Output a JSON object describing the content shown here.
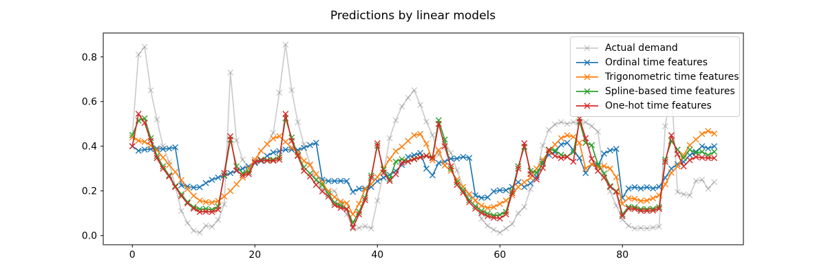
{
  "chart_data": {
    "type": "line",
    "title": "Predictions by linear models",
    "xlabel": "",
    "ylabel": "",
    "n_points": 96,
    "x_range": {
      "start": 0,
      "end": 95,
      "step": 1,
      "note": "x value = array index (last 96 hours)"
    },
    "xlim": [
      -4.75,
      99.75
    ],
    "ylim": [
      -0.041,
      0.907
    ],
    "grid": false,
    "marker": "x",
    "legend_position": "upper right",
    "axis_color": "#000000",
    "xticks": {
      "values": [
        0,
        20,
        40,
        60,
        80
      ],
      "labels": [
        "0",
        "20",
        "40",
        "60",
        "80"
      ]
    },
    "yticks": {
      "values": [
        0.0,
        0.2,
        0.4,
        0.6,
        0.8
      ],
      "labels": [
        "0.0",
        "0.2",
        "0.4",
        "0.6",
        "0.8"
      ]
    },
    "series": [
      {
        "name": "Actual demand",
        "color": "#000000",
        "alpha": 0.2,
        "values": [
          0.45,
          0.81,
          0.845,
          0.65,
          0.52,
          0.4,
          0.33,
          0.22,
          0.11,
          0.057,
          0.022,
          0.013,
          0.045,
          0.04,
          0.07,
          0.14,
          0.73,
          0.426,
          0.34,
          0.3,
          0.33,
          0.38,
          0.41,
          0.46,
          0.64,
          0.855,
          0.651,
          0.508,
          0.408,
          0.319,
          0.247,
          0.208,
          0.2,
          0.2,
          0.145,
          0.095,
          0.03,
          0.035,
          0.042,
          0.032,
          0.157,
          0.28,
          0.436,
          0.516,
          0.578,
          0.617,
          0.651,
          0.585,
          0.51,
          0.45,
          0.36,
          0.42,
          0.37,
          0.292,
          0.218,
          0.177,
          0.159,
          0.075,
          0.044,
          0.026,
          0.013,
          0.032,
          0.052,
          0.1,
          0.128,
          0.208,
          0.28,
          0.403,
          0.473,
          0.498,
          0.508,
          0.5,
          0.508,
          0.504,
          0.508,
          0.49,
          0.465,
          0.27,
          0.198,
          0.134,
          0.073,
          0.044,
          0.032,
          0.034,
          0.032,
          0.036,
          0.04,
          0.49,
          0.66,
          0.195,
          0.185,
          0.18,
          0.245,
          0.25,
          0.21,
          0.24
        ]
      },
      {
        "name": "Ordinal time features",
        "color": "#1f77b4",
        "alpha": 1,
        "values": [
          0.4,
          0.38,
          0.385,
          0.387,
          0.39,
          0.387,
          0.39,
          0.395,
          0.225,
          0.22,
          0.215,
          0.217,
          0.235,
          0.25,
          0.26,
          0.268,
          0.28,
          0.29,
          0.3,
          0.31,
          0.325,
          0.334,
          0.357,
          0.372,
          0.378,
          0.385,
          0.385,
          0.383,
          0.393,
          0.405,
          0.415,
          0.25,
          0.244,
          0.244,
          0.245,
          0.244,
          0.196,
          0.21,
          0.211,
          0.218,
          0.244,
          0.259,
          0.272,
          0.29,
          0.316,
          0.352,
          0.36,
          0.37,
          0.3,
          0.27,
          0.325,
          0.331,
          0.344,
          0.345,
          0.352,
          0.348,
          0.18,
          0.169,
          0.171,
          0.198,
          0.203,
          0.203,
          0.218,
          0.239,
          0.218,
          0.234,
          0.262,
          0.331,
          0.362,
          0.374,
          0.408,
          0.415,
          0.383,
          0.347,
          0.28,
          0.319,
          0.313,
          0.367,
          0.381,
          0.388,
          0.169,
          0.211,
          0.217,
          0.211,
          0.217,
          0.211,
          0.218,
          0.259,
          0.3,
          0.32,
          0.33,
          0.36,
          0.375,
          0.4,
          0.39,
          0.4
        ]
      },
      {
        "name": "Trigonometric time features",
        "color": "#ff7f0e",
        "alpha": 1,
        "values": [
          0.44,
          0.425,
          0.42,
          0.403,
          0.383,
          0.35,
          0.316,
          0.285,
          0.249,
          0.208,
          0.178,
          0.157,
          0.15,
          0.148,
          0.155,
          0.175,
          0.2,
          0.23,
          0.26,
          0.3,
          0.34,
          0.38,
          0.41,
          0.435,
          0.445,
          0.42,
          0.393,
          0.372,
          0.334,
          0.316,
          0.275,
          0.237,
          0.198,
          0.172,
          0.152,
          0.145,
          0.095,
          0.142,
          0.208,
          0.231,
          0.262,
          0.3,
          0.342,
          0.378,
          0.398,
          0.424,
          0.449,
          0.455,
          0.411,
          0.337,
          0.383,
          0.314,
          0.29,
          0.251,
          0.218,
          0.186,
          0.157,
          0.134,
          0.124,
          0.128,
          0.142,
          0.157,
          0.18,
          0.218,
          0.239,
          0.259,
          0.3,
          0.34,
          0.374,
          0.408,
          0.436,
          0.449,
          0.442,
          0.415,
          0.3,
          0.32,
          0.306,
          0.311,
          0.3,
          0.262,
          0.142,
          0.167,
          0.165,
          0.155,
          0.157,
          0.167,
          0.18,
          0.23,
          0.282,
          0.31,
          0.36,
          0.405,
          0.43,
          0.455,
          0.468,
          0.457
        ]
      },
      {
        "name": "Spline-based time features",
        "color": "#2ca02c",
        "alpha": 1,
        "values": [
          0.45,
          0.515,
          0.525,
          0.436,
          0.357,
          0.31,
          0.27,
          0.222,
          0.185,
          0.15,
          0.128,
          0.118,
          0.12,
          0.116,
          0.13,
          0.27,
          0.43,
          0.31,
          0.28,
          0.285,
          0.33,
          0.34,
          0.338,
          0.34,
          0.35,
          0.525,
          0.439,
          0.36,
          0.306,
          0.278,
          0.25,
          0.227,
          0.186,
          0.147,
          0.134,
          0.12,
          0.057,
          0.106,
          0.169,
          0.268,
          0.403,
          0.295,
          0.253,
          0.331,
          0.342,
          0.333,
          0.344,
          0.351,
          0.358,
          0.35,
          0.516,
          0.43,
          0.3,
          0.239,
          0.203,
          0.159,
          0.131,
          0.111,
          0.098,
          0.09,
          0.093,
          0.106,
          0.2,
          0.31,
          0.398,
          0.29,
          0.282,
          0.321,
          0.385,
          0.381,
          0.362,
          0.354,
          0.374,
          0.511,
          0.415,
          0.405,
          0.319,
          0.278,
          0.222,
          0.199,
          0.095,
          0.128,
          0.127,
          0.118,
          0.118,
          0.12,
          0.127,
          0.34,
          0.424,
          0.385,
          0.347,
          0.385,
          0.37,
          0.375,
          0.36,
          0.375
        ]
      },
      {
        "name": "One-hot time features",
        "color": "#d62728",
        "alpha": 1,
        "values": [
          0.4,
          0.545,
          0.505,
          0.424,
          0.347,
          0.3,
          0.265,
          0.218,
          0.177,
          0.145,
          0.121,
          0.106,
          0.107,
          0.106,
          0.116,
          0.28,
          0.444,
          0.292,
          0.27,
          0.275,
          0.33,
          0.337,
          0.335,
          0.335,
          0.34,
          0.545,
          0.424,
          0.357,
          0.29,
          0.265,
          0.227,
          0.198,
          0.175,
          0.137,
          0.124,
          0.118,
          0.036,
          0.095,
          0.159,
          0.259,
          0.413,
          0.282,
          0.245,
          0.275,
          0.326,
          0.331,
          0.342,
          0.35,
          0.357,
          0.347,
          0.5,
          0.4,
          0.31,
          0.227,
          0.193,
          0.149,
          0.121,
          0.101,
          0.087,
          0.08,
          0.077,
          0.095,
          0.19,
          0.3,
          0.413,
          0.275,
          0.251,
          0.303,
          0.383,
          0.357,
          0.347,
          0.352,
          0.331,
          0.524,
          0.436,
          0.344,
          0.29,
          0.26,
          0.218,
          0.196,
          0.087,
          0.121,
          0.119,
          0.111,
          0.111,
          0.112,
          0.12,
          0.33,
          0.449,
          0.365,
          0.31,
          0.338,
          0.352,
          0.349,
          0.347,
          0.347
        ]
      }
    ]
  }
}
